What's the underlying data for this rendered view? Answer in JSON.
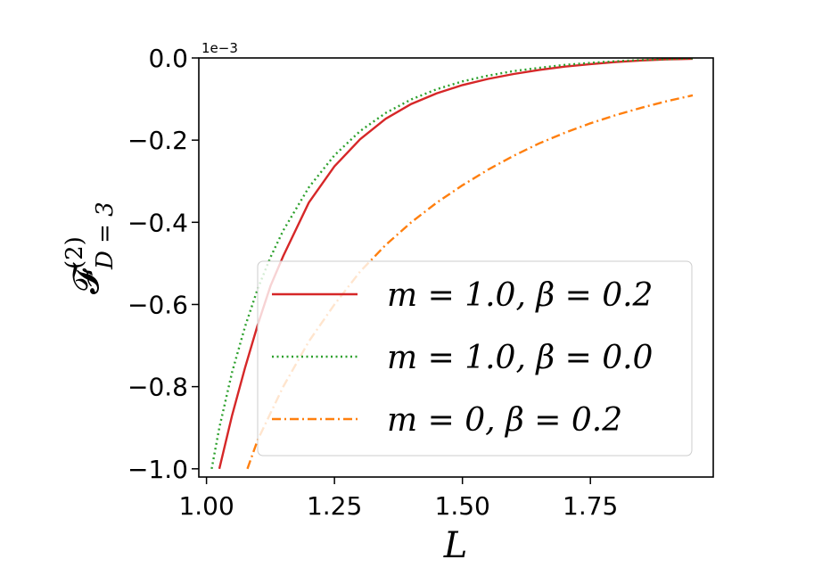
{
  "chart_data": {
    "type": "line",
    "xlabel": "L",
    "ylabel": "𝓕^(2)_{D=3}",
    "ylabel_parts": {
      "main": "𝓕",
      "sup": "(2)",
      "sub": "D = 3"
    },
    "y_offset_text": "1e−3",
    "xlim": [
      0.985,
      1.99
    ],
    "ylim": [
      -1.02,
      0.0
    ],
    "x_ticks": [
      1.0,
      1.25,
      1.5,
      1.75
    ],
    "x_tick_labels": [
      "1.00",
      "1.25",
      "1.50",
      "1.75"
    ],
    "y_ticks": [
      0.0,
      -0.2,
      -0.4,
      -0.6,
      -0.8,
      -1.0
    ],
    "y_tick_labels": [
      "0.0",
      "−0.2",
      "−0.4",
      "−0.6",
      "−0.8",
      "−1.0"
    ],
    "grid": false,
    "legend_position": "lower-right",
    "series": [
      {
        "name": "m = 1.0, β = 0.2",
        "color": "#d62728",
        "style": "solid",
        "x": [
          1.025,
          1.05,
          1.075,
          1.1,
          1.125,
          1.15,
          1.2,
          1.25,
          1.3,
          1.35,
          1.4,
          1.45,
          1.5,
          1.55,
          1.6,
          1.65,
          1.7,
          1.75,
          1.8,
          1.85,
          1.9,
          1.95
        ],
        "y": [
          -1.0,
          -0.87,
          -0.755,
          -0.65,
          -0.555,
          -0.482,
          -0.352,
          -0.264,
          -0.198,
          -0.148,
          -0.112,
          -0.086,
          -0.066,
          -0.051,
          -0.039,
          -0.029,
          -0.021,
          -0.015,
          -0.01,
          -0.006,
          -0.0035,
          -0.002
        ]
      },
      {
        "name": "m = 1.0, β = 0.0",
        "color": "#2ca02c",
        "style": "dotted",
        "x": [
          1.01,
          1.025,
          1.05,
          1.075,
          1.1,
          1.125,
          1.15,
          1.2,
          1.25,
          1.3,
          1.35,
          1.4,
          1.45,
          1.5,
          1.55,
          1.6,
          1.65,
          1.7,
          1.75,
          1.8,
          1.85,
          1.9,
          1.95
        ],
        "y": [
          -1.0,
          -0.9,
          -0.765,
          -0.655,
          -0.562,
          -0.485,
          -0.42,
          -0.315,
          -0.237,
          -0.178,
          -0.134,
          -0.101,
          -0.076,
          -0.057,
          -0.043,
          -0.032,
          -0.024,
          -0.017,
          -0.012,
          -0.008,
          -0.005,
          -0.003,
          -0.001
        ]
      },
      {
        "name": "m = 0, β = 0.2",
        "color": "#ff7f0e",
        "style": "dashdot",
        "x": [
          1.08,
          1.1,
          1.15,
          1.2,
          1.25,
          1.3,
          1.35,
          1.4,
          1.45,
          1.5,
          1.55,
          1.6,
          1.65,
          1.7,
          1.75,
          1.8,
          1.85,
          1.9,
          1.95
        ],
        "y": [
          -1.0,
          -0.93,
          -0.8,
          -0.69,
          -0.6,
          -0.52,
          -0.455,
          -0.4,
          -0.352,
          -0.31,
          -0.272,
          -0.238,
          -0.208,
          -0.182,
          -0.159,
          -0.139,
          -0.121,
          -0.105,
          -0.091
        ]
      }
    ]
  }
}
